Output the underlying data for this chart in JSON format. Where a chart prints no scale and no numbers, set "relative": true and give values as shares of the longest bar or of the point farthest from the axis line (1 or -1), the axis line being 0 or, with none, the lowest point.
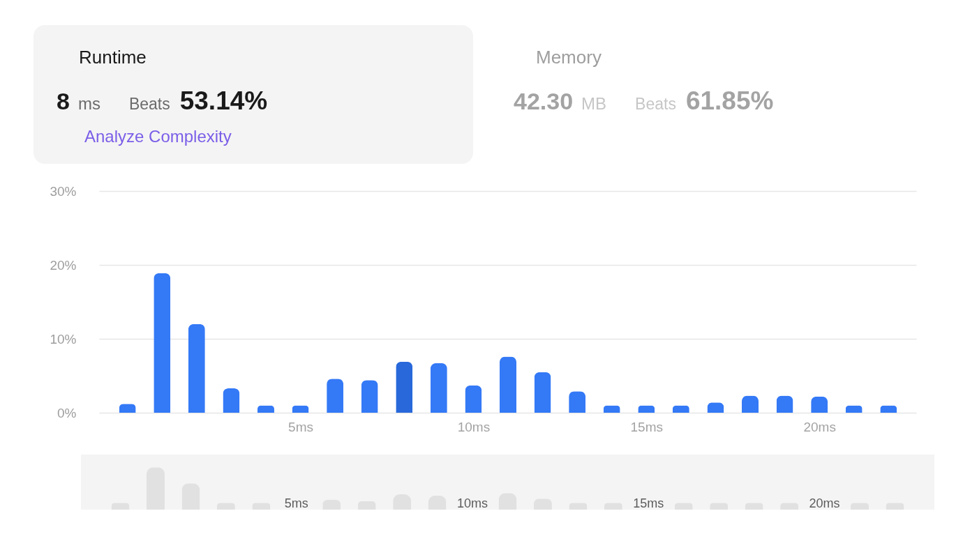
{
  "chart_data": [
    {
      "type": "other",
      "title": "Runtime",
      "annotations": [
        "8",
        "ms",
        "Beats",
        "53.14%",
        "Analyze Complexity"
      ]
    },
    {
      "type": "other",
      "title": "Memory",
      "annotations": [
        "42.30",
        "MB",
        "Beats",
        "61.85%"
      ]
    },
    {
      "type": "bar",
      "x": [
        0,
        1,
        2,
        3,
        4,
        5,
        6,
        7,
        8,
        9,
        10,
        11,
        12,
        13,
        14,
        15,
        16,
        17,
        18,
        19,
        20,
        21,
        22
      ],
      "values": [
        1.2,
        18.9,
        12.0,
        3.3,
        1.0,
        1.0,
        4.6,
        4.4,
        6.9,
        6.7,
        3.7,
        7.6,
        5.5,
        2.9,
        1.0,
        1.0,
        1.0,
        1.4,
        2.3,
        2.3,
        2.2,
        1.0,
        1.0
      ],
      "colors": [
        "#3479f6",
        "#3479f6",
        "#3479f6",
        "#3479f6",
        "#3479f6",
        "#3479f6",
        "#3479f6",
        "#3479f6",
        "#2868da",
        "#3479f6",
        "#3479f6",
        "#3479f6",
        "#3479f6",
        "#3479f6",
        "#3479f6",
        "#3479f6",
        "#3479f6",
        "#3479f6",
        "#3479f6",
        "#3479f6",
        "#3479f6",
        "#3479f6",
        "#3479f6"
      ],
      "xlim": [
        -0.72,
        22.7
      ],
      "xticks": [
        {
          "value": 5,
          "label": "5ms"
        },
        {
          "value": 10,
          "label": "10ms"
        },
        {
          "value": 15,
          "label": "15ms"
        },
        {
          "value": 20,
          "label": "20ms"
        }
      ],
      "ylim": [
        0,
        30
      ],
      "yticks": [
        {
          "value": 0,
          "label": "0%"
        },
        {
          "value": 10,
          "label": "10%"
        },
        {
          "value": 20,
          "label": "20%"
        },
        {
          "value": 30,
          "label": "30%"
        }
      ],
      "grid": "y"
    },
    {
      "type": "bar",
      "relative": true,
      "categories": [
        null,
        null,
        null,
        null,
        null,
        "5ms",
        null,
        null,
        null,
        null,
        "10ms",
        null,
        null,
        null,
        null,
        "15ms",
        null,
        null,
        null,
        null,
        "20ms",
        null,
        null
      ],
      "values": [
        0.16,
        1,
        0.62,
        0.16,
        0.16,
        null,
        0.23,
        0.2,
        0.36,
        0.33,
        null,
        0.39,
        0.26,
        0.16,
        0.16,
        null,
        0.16,
        0.16,
        0.16,
        0.16,
        null,
        0.16,
        0.16
      ],
      "color": "#e1e1e1",
      "tick_labels": "x"
    }
  ]
}
